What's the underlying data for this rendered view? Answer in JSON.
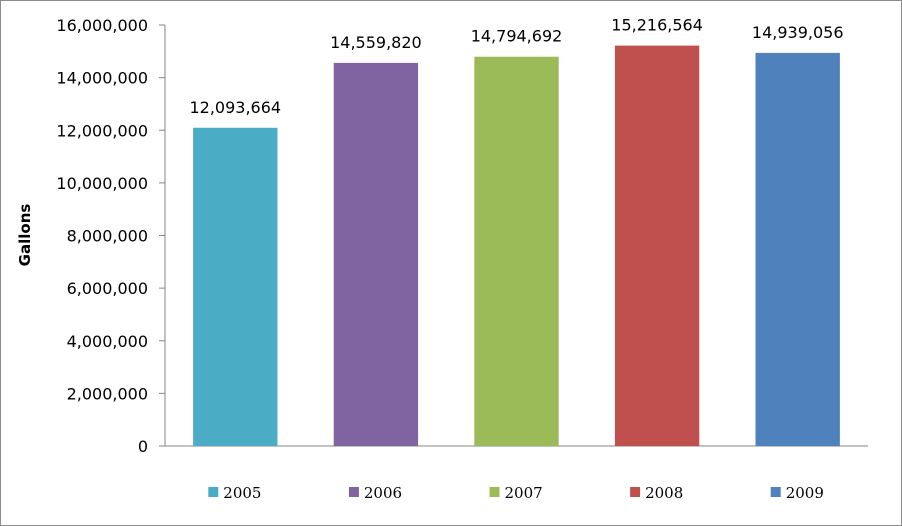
{
  "chart_data": {
    "type": "bar",
    "title": "",
    "xlabel": "",
    "ylabel": "Gallons",
    "ylim": [
      0,
      16000000
    ],
    "ytick_step": 2000000,
    "y_ticks": [
      "0",
      "2,000,000",
      "4,000,000",
      "6,000,000",
      "8,000,000",
      "10,000,000",
      "12,000,000",
      "14,000,000",
      "16,000,000"
    ],
    "grid": false,
    "legend_position": "bottom",
    "categories": [
      "2005",
      "2006",
      "2007",
      "2008",
      "2009"
    ],
    "values": [
      12093664,
      14559820,
      14794692,
      15216564,
      14939056
    ],
    "value_labels": [
      "12,093,664",
      "14,559,820",
      "14,794,692",
      "15,216,564",
      "14,939,056"
    ],
    "colors": [
      "#4bacc6",
      "#8064a2",
      "#9bbb59",
      "#c0504d",
      "#4f81bd"
    ]
  }
}
